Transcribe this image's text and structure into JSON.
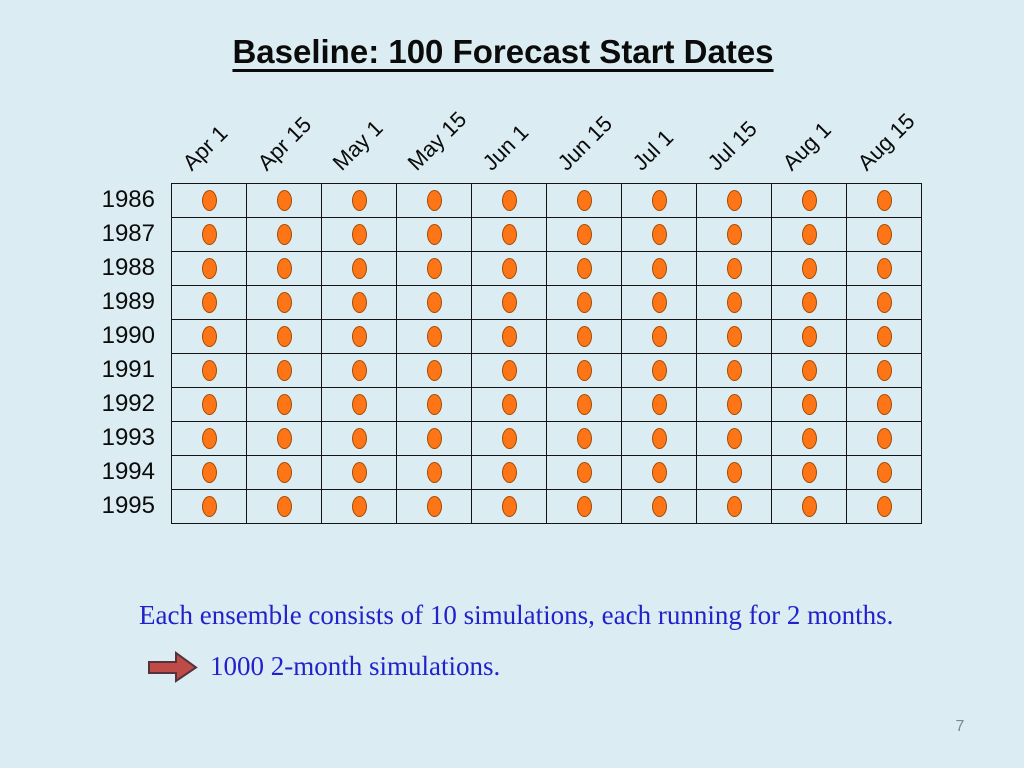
{
  "title": "Baseline: 100 Forecast Start Dates",
  "captions": {
    "line1": "Each ensemble consists of 10 simulations, each running for 2 months.",
    "line2": "1000 2-month simulations."
  },
  "page_number": "7",
  "icons": {
    "arrow": "right-block-arrow-icon",
    "dot": "forecast-start-dot"
  },
  "colors": {
    "background": "#dbedf2",
    "grid_line": "#141414",
    "text_blue": "#2222cc",
    "dot_fill": "#fd7517",
    "dot_stroke": "#a34b00",
    "arrow_fill": "#bf4b47",
    "arrow_stroke": "#55323c",
    "page_num_gray": "#7b8a92"
  },
  "chart_data": {
    "type": "table",
    "title": "Baseline: 100 Forecast Start Dates",
    "columns": [
      "Apr 1",
      "Apr 15",
      "May 1",
      "May 15",
      "Jun 1",
      "Jun 15",
      "Jul 1",
      "Jul 15",
      "Aug 1",
      "Aug 15"
    ],
    "rows": [
      "1986",
      "1987",
      "1988",
      "1989",
      "1990",
      "1991",
      "1992",
      "1993",
      "1994",
      "1995"
    ],
    "values": [
      [
        1,
        1,
        1,
        1,
        1,
        1,
        1,
        1,
        1,
        1
      ],
      [
        1,
        1,
        1,
        1,
        1,
        1,
        1,
        1,
        1,
        1
      ],
      [
        1,
        1,
        1,
        1,
        1,
        1,
        1,
        1,
        1,
        1
      ],
      [
        1,
        1,
        1,
        1,
        1,
        1,
        1,
        1,
        1,
        1
      ],
      [
        1,
        1,
        1,
        1,
        1,
        1,
        1,
        1,
        1,
        1
      ],
      [
        1,
        1,
        1,
        1,
        1,
        1,
        1,
        1,
        1,
        1
      ],
      [
        1,
        1,
        1,
        1,
        1,
        1,
        1,
        1,
        1,
        1
      ],
      [
        1,
        1,
        1,
        1,
        1,
        1,
        1,
        1,
        1,
        1
      ],
      [
        1,
        1,
        1,
        1,
        1,
        1,
        1,
        1,
        1,
        1
      ],
      [
        1,
        1,
        1,
        1,
        1,
        1,
        1,
        1,
        1,
        1
      ]
    ],
    "marker": "orange-ellipse",
    "total_markers": 100,
    "legend_position": "none",
    "grid": true
  }
}
